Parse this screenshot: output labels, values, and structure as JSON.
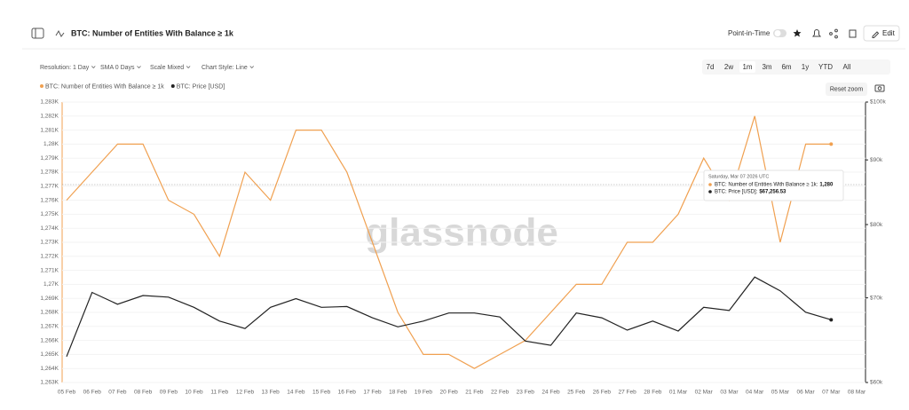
{
  "toolbar": {
    "title": "BTC: Number of Entities With Balance ≥ 1k",
    "point_in_time": "Point-in-Time",
    "edit": "Edit",
    "options": [
      "Resolution: 1 Day",
      "SMA 0 Days",
      "Scale Mixed",
      "Chart Style: Line"
    ],
    "ranges": [
      "7d",
      "2w",
      "1m",
      "3m",
      "6m",
      "1y",
      "YTD",
      "All"
    ],
    "reset_zoom": "Reset zoom"
  },
  "chart_data": {
    "type": "line",
    "categories": [
      "05 Feb",
      "06 Feb",
      "07 Feb",
      "08 Feb",
      "09 Feb",
      "10 Feb",
      "11 Feb",
      "12 Feb",
      "13 Feb",
      "14 Feb",
      "15 Feb",
      "16 Feb",
      "17 Feb",
      "18 Feb",
      "19 Feb",
      "20 Feb",
      "21 Feb",
      "22 Feb",
      "23 Feb",
      "24 Feb",
      "25 Feb",
      "26 Feb",
      "27 Feb",
      "28 Feb",
      "01 Mar",
      "02 Mar",
      "03 Mar",
      "04 Mar",
      "05 Mar",
      "06 Mar",
      "07 Mar",
      "08 Mar"
    ],
    "series": [
      {
        "name": "BTC: Number of Entities With Balance ≥ 1k",
        "color": "#f0a050",
        "values": [
          1276,
          1278,
          1280,
          1280,
          1276,
          1275,
          1272,
          1278,
          1276,
          1281,
          1281,
          1278,
          1273,
          1268,
          1265,
          1265,
          1264,
          1265,
          1266,
          1268,
          1270,
          1270,
          1273,
          1273,
          1275,
          1279,
          1276,
          1282,
          1273,
          1280,
          1280,
          null
        ]
      },
      {
        "name": "BTC: Price [USD]",
        "color": "#222222",
        "axis": "y2",
        "values": [
          62.9,
          70.7,
          69.2,
          70.3,
          70.1,
          68.8,
          67.1,
          66.2,
          68.8,
          69.9,
          68.8,
          68.9,
          67.5,
          66.4,
          67.1,
          68.1,
          68.1,
          67.6,
          64.7,
          64.2,
          68.1,
          67.5,
          66.0,
          67.1,
          65.9,
          68.8,
          68.4,
          72.7,
          70.9,
          68.2,
          67.26,
          null
        ]
      }
    ],
    "ylim": [
      1263,
      1283
    ],
    "yticks": [
      {
        "value": 1263,
        "label": "1,263K"
      },
      {
        "value": 1264,
        "label": "1,264K"
      },
      {
        "value": 1265,
        "label": "1,265K"
      },
      {
        "value": 1266,
        "label": "1,266K"
      },
      {
        "value": 1267,
        "label": "1,267K"
      },
      {
        "value": 1268,
        "label": "1,268K"
      },
      {
        "value": 1269,
        "label": "1,269K"
      },
      {
        "value": 1270,
        "label": "1,27K"
      },
      {
        "value": 1271,
        "label": "1,271K"
      },
      {
        "value": 1272,
        "label": "1,272K"
      },
      {
        "value": 1273,
        "label": "1,273K"
      },
      {
        "value": 1274,
        "label": "1,274K"
      },
      {
        "value": 1275,
        "label": "1,275K"
      },
      {
        "value": 1276,
        "label": "1,276K"
      },
      {
        "value": 1277,
        "label": "1,277K"
      },
      {
        "value": 1278,
        "label": "1,278K"
      },
      {
        "value": 1279,
        "label": "1,279K"
      },
      {
        "value": 1280,
        "label": "1,28K"
      },
      {
        "value": 1281,
        "label": "1,281K"
      },
      {
        "value": 1282,
        "label": "1,282K"
      },
      {
        "value": 1283,
        "label": "1,283K"
      }
    ],
    "y2lim": [
      60,
      100
    ],
    "y2_log": true,
    "y2ticks": [
      {
        "value": 60,
        "label": "$60k"
      },
      {
        "value": 70,
        "label": "$70k"
      },
      {
        "value": 80,
        "label": "$80k"
      },
      {
        "value": 90,
        "label": "$90k"
      },
      {
        "value": 100,
        "label": "$100k"
      }
    ],
    "grid": true,
    "watermark": "glassnode",
    "tooltip": {
      "date": "Saturday, Mar 07 2026 UTC",
      "entries": [
        {
          "label": "BTC: Number of Entities With Balance ≥ 1k:",
          "value": "1,280"
        },
        {
          "label": "BTC: Price [USD]:",
          "value": "$67,256.53"
        }
      ]
    }
  }
}
